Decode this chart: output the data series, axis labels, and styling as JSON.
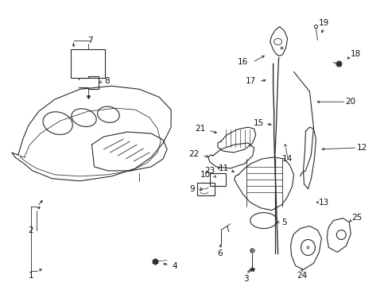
{
  "background_color": "#ffffff",
  "figsize": [
    4.89,
    3.6
  ],
  "dpi": 100,
  "line_color": "#2a2a2a",
  "label_fontsize": 7.5,
  "label_color": "#111111"
}
